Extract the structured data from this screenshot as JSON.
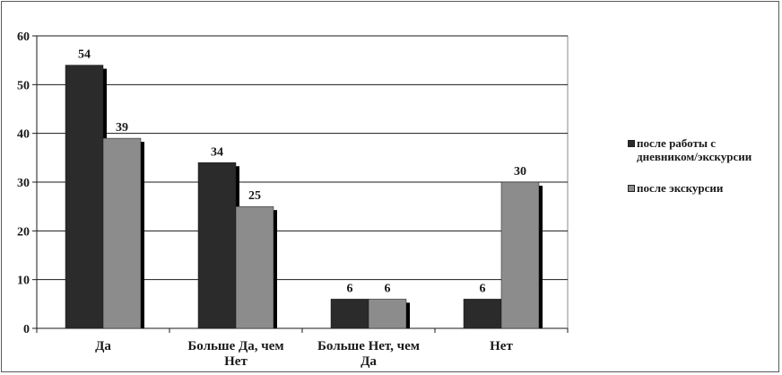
{
  "chart_data": {
    "type": "bar",
    "categories": [
      [
        "Да"
      ],
      [
        "Больше Да, чем",
        "Нет"
      ],
      [
        "Больше Нет, чем",
        "Да"
      ],
      [
        "Нет"
      ]
    ],
    "series": [
      {
        "name": "после работы с дневником/экскурсии",
        "values": [
          54,
          34,
          6,
          6
        ],
        "color": "#2b2b2b"
      },
      {
        "name": "после экскурсии",
        "values": [
          39,
          25,
          6,
          30
        ],
        "color": "#8c8c8c"
      }
    ],
    "ylim": [
      0,
      60
    ],
    "yticks": [
      0,
      10,
      20,
      30,
      40,
      50,
      60
    ],
    "grid": true,
    "legend_position": "right"
  },
  "legend": {
    "items": [
      {
        "label_lines": [
          "после работы с",
          "дневником/экскурсии"
        ],
        "color": "#2b2b2b"
      },
      {
        "label_lines": [
          "после экскурсии"
        ],
        "color": "#8c8c8c"
      }
    ]
  }
}
